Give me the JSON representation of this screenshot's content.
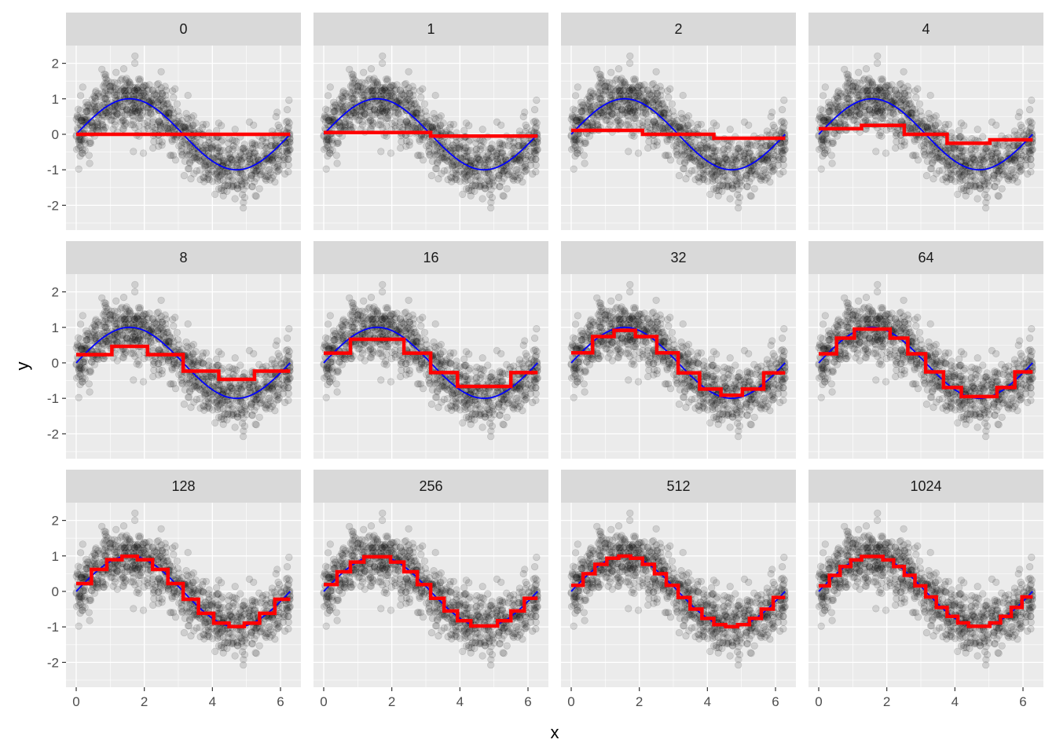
{
  "colors": {
    "panel_bg": "#ebebeb",
    "strip_bg": "#d9d9d9",
    "grid_major": "#ffffff",
    "points": "#000000",
    "true_function": "#0000ff",
    "fitted": "#ff0000"
  },
  "chart_data": {
    "type": "scatter",
    "layout": "facet-grid 3x4",
    "xlabel": "x",
    "ylabel": "y",
    "xlim": [
      -0.3,
      6.6
    ],
    "ylim": [
      -2.7,
      2.5
    ],
    "x_ticks": [
      0,
      2,
      4,
      6
    ],
    "y_ticks": [
      -2,
      -1,
      0,
      1,
      2
    ],
    "grid": true,
    "n_points": 1000,
    "point_alpha": 0.12,
    "true_function": "sin(x)",
    "facets": [
      {
        "label": "0",
        "trees": 0
      },
      {
        "label": "1",
        "trees": 1
      },
      {
        "label": "2",
        "trees": 2
      },
      {
        "label": "4",
        "trees": 4
      },
      {
        "label": "8",
        "trees": 8
      },
      {
        "label": "16",
        "trees": 16
      },
      {
        "label": "32",
        "trees": 32
      },
      {
        "label": "64",
        "trees": 64
      },
      {
        "label": "128",
        "trees": 128
      },
      {
        "label": "256",
        "trees": 256
      },
      {
        "label": "512",
        "trees": 512
      },
      {
        "label": "1024",
        "trees": 1024
      }
    ]
  }
}
